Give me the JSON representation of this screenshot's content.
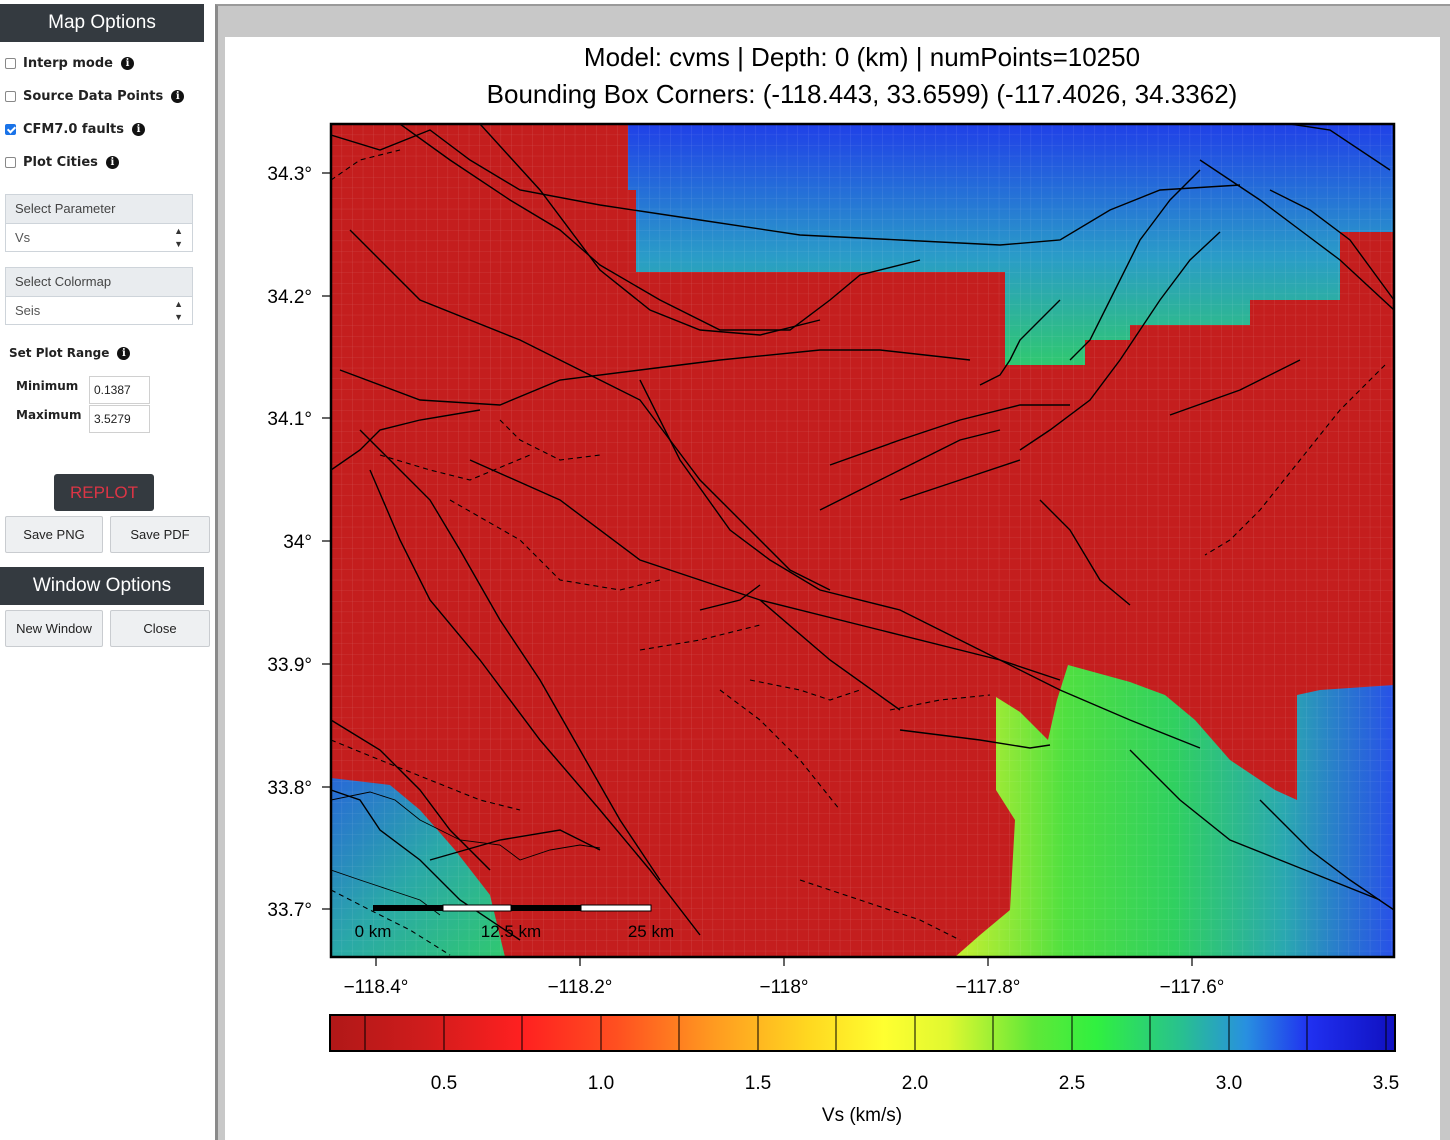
{
  "sidebar": {
    "map_options_title": "Map Options",
    "checkboxes": [
      {
        "label": "Interp mode",
        "checked": false
      },
      {
        "label": "Source Data Points",
        "checked": false
      },
      {
        "label": "CFM7.0 faults",
        "checked": true
      },
      {
        "label": "Plot Cities",
        "checked": false
      }
    ],
    "parameter": {
      "label": "Select Parameter",
      "value": "Vs"
    },
    "colormap": {
      "label": "Select Colormap",
      "value": "Seis"
    },
    "range": {
      "title": "Set Plot Range",
      "min_label": "Minimum",
      "min_value": "0.1387",
      "max_label": "Maximum",
      "max_value": "3.5279"
    },
    "replot_label": "REPLOT",
    "save_png_label": "Save PNG",
    "save_pdf_label": "Save PDF",
    "window_options_title": "Window Options",
    "new_window_label": "New Window",
    "close_label": "Close"
  },
  "plot": {
    "title_line1": "Model: cvms | Depth: 0 (km) | numPoints=10250",
    "title_line2": "Bounding Box Corners: (-118.443, 33.6599) (-117.4026, 34.3362)",
    "x_ticks": [
      "−118.4°",
      "−118.2°",
      "−118°",
      "−117.8°",
      "−117.6°"
    ],
    "y_ticks": [
      "34.3°",
      "34.2°",
      "34.1°",
      "34°",
      "33.9°",
      "33.8°",
      "33.7°"
    ],
    "scalebar": [
      "0 km",
      "12.5 km",
      "25 km"
    ],
    "colorbar_ticks": [
      "0.5",
      "1.0",
      "1.5",
      "2.0",
      "2.5",
      "3.0",
      "3.5"
    ],
    "colorbar_label": "Vs (km/s)",
    "colors": {
      "red": "#c41e1e",
      "blue": "#2040e8",
      "teal": "#2aa8a8",
      "green": "#39d040",
      "yellow": "#d8f030"
    }
  }
}
